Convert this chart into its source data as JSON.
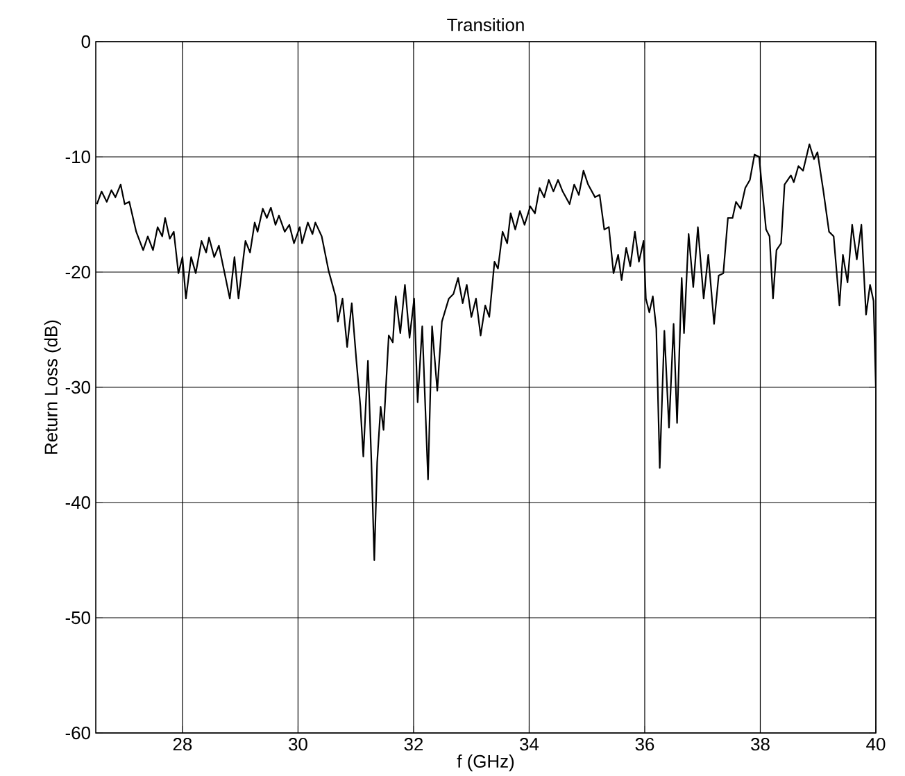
{
  "chart_data": {
    "type": "line",
    "title": "Transition",
    "xlabel": "f (GHz)",
    "ylabel": "Return Loss (dB)",
    "xlim": [
      26.5,
      40
    ],
    "xticks": [
      28,
      30,
      32,
      34,
      36,
      38,
      40
    ],
    "ylim": [
      -60,
      0
    ],
    "yticks": [
      -60,
      -50,
      -40,
      -30,
      -20,
      -10,
      0
    ],
    "grid": true,
    "series": [
      {
        "color": "#000000",
        "x": [
          26.52,
          26.6,
          26.69,
          26.77,
          26.84,
          26.93,
          27.0,
          27.08,
          27.2,
          27.32,
          27.4,
          27.49,
          27.57,
          27.65,
          27.7,
          27.78,
          27.85,
          27.93,
          28.0,
          28.06,
          28.15,
          28.23,
          28.33,
          28.41,
          28.46,
          28.55,
          28.63,
          28.73,
          28.82,
          28.9,
          28.97,
          29.09,
          29.17,
          29.25,
          29.3,
          29.39,
          29.46,
          29.53,
          29.61,
          29.67,
          29.77,
          29.85,
          29.93,
          30.03,
          30.07,
          30.17,
          30.25,
          30.3,
          30.41,
          30.53,
          30.65,
          30.69,
          30.77,
          30.85,
          30.93,
          31.01,
          31.08,
          31.13,
          31.21,
          31.27,
          31.32,
          31.37,
          31.43,
          31.48,
          31.57,
          31.64,
          31.69,
          31.77,
          31.85,
          31.93,
          32.01,
          32.07,
          32.15,
          32.25,
          32.32,
          32.41,
          32.49,
          32.61,
          32.69,
          32.77,
          32.85,
          32.92,
          33.0,
          33.08,
          33.16,
          33.24,
          33.31,
          33.4,
          33.46,
          33.54,
          33.62,
          33.68,
          33.76,
          33.84,
          33.92,
          34.02,
          34.1,
          34.18,
          34.26,
          34.34,
          34.42,
          34.5,
          34.58,
          34.7,
          34.78,
          34.86,
          34.94,
          35.02,
          35.14,
          35.22,
          35.3,
          35.38,
          35.46,
          35.54,
          35.6,
          35.68,
          35.75,
          35.83,
          35.9,
          35.98,
          36.02,
          36.08,
          36.14,
          36.2,
          36.26,
          36.34,
          36.42,
          36.5,
          36.56,
          36.64,
          36.68,
          36.76,
          36.84,
          36.92,
          37.02,
          37.1,
          37.2,
          37.28,
          37.36,
          37.44,
          37.52,
          37.58,
          37.66,
          37.74,
          37.82,
          37.9,
          37.98,
          38.1,
          38.16,
          38.22,
          38.28,
          38.36,
          38.42,
          38.53,
          38.58,
          38.66,
          38.74,
          38.85,
          38.93,
          38.99,
          39.09,
          39.19,
          39.27,
          39.37,
          39.43,
          39.51,
          39.59,
          39.67,
          39.75,
          39.83,
          39.9,
          39.96,
          40.0
        ],
        "values": [
          -14.1,
          -13.0,
          -13.9,
          -12.9,
          -13.5,
          -12.4,
          -14.1,
          -13.9,
          -16.5,
          -18.1,
          -16.9,
          -18.1,
          -16.1,
          -16.9,
          -15.3,
          -17.1,
          -16.5,
          -20.1,
          -18.7,
          -22.3,
          -18.7,
          -20.1,
          -17.3,
          -18.3,
          -17.0,
          -18.7,
          -17.7,
          -20.1,
          -22.3,
          -18.7,
          -22.3,
          -17.3,
          -18.3,
          -15.7,
          -16.5,
          -14.5,
          -15.3,
          -14.4,
          -15.9,
          -15.1,
          -16.5,
          -15.9,
          -17.5,
          -16.1,
          -17.5,
          -15.7,
          -16.7,
          -15.7,
          -16.9,
          -19.9,
          -22.1,
          -24.3,
          -22.3,
          -26.5,
          -22.7,
          -27.7,
          -31.7,
          -36.0,
          -27.7,
          -36.5,
          -45.0,
          -36.5,
          -31.7,
          -33.7,
          -25.5,
          -26.1,
          -22.1,
          -25.3,
          -21.1,
          -25.7,
          -22.3,
          -31.3,
          -24.7,
          -38.0,
          -24.7,
          -30.3,
          -24.3,
          -22.3,
          -21.9,
          -20.5,
          -22.7,
          -21.1,
          -23.9,
          -22.3,
          -25.5,
          -22.9,
          -23.9,
          -19.1,
          -19.7,
          -16.5,
          -17.5,
          -14.9,
          -16.3,
          -14.7,
          -15.9,
          -14.3,
          -14.9,
          -12.7,
          -13.5,
          -12.0,
          -13.0,
          -12.0,
          -13.0,
          -14.1,
          -12.4,
          -13.3,
          -11.2,
          -12.4,
          -13.5,
          -13.3,
          -16.3,
          -16.1,
          -20.1,
          -18.5,
          -20.7,
          -17.9,
          -19.5,
          -16.5,
          -19.1,
          -17.3,
          -22.3,
          -23.5,
          -22.1,
          -24.9,
          -37.0,
          -25.1,
          -33.5,
          -24.5,
          -33.1,
          -20.5,
          -25.3,
          -16.7,
          -21.3,
          -16.1,
          -22.3,
          -18.5,
          -24.5,
          -20.3,
          -20.1,
          -15.3,
          -15.3,
          -13.9,
          -14.5,
          -12.7,
          -12.0,
          -9.8,
          -10.0,
          -16.3,
          -16.9,
          -22.3,
          -18.1,
          -17.5,
          -12.4,
          -11.6,
          -12.2,
          -10.8,
          -11.2,
          -8.9,
          -10.2,
          -9.6,
          -12.9,
          -16.5,
          -16.9,
          -22.9,
          -18.5,
          -20.9,
          -15.9,
          -18.9,
          -15.9,
          -23.7,
          -21.1,
          -22.5,
          -30.0
        ]
      }
    ]
  }
}
